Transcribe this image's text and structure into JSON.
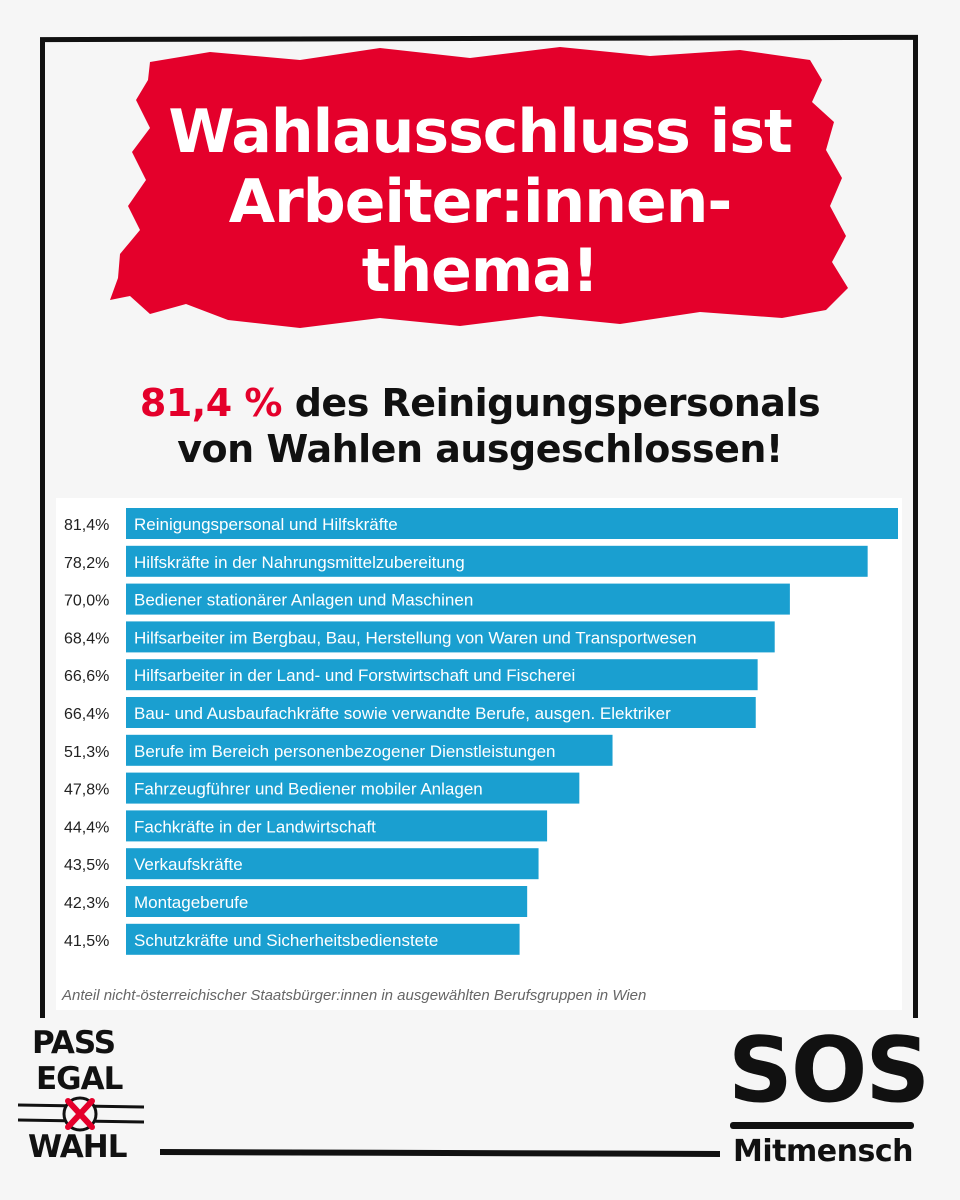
{
  "headline": {
    "lines": [
      "Wahlausschluss ist",
      "Arbeiter:innen-",
      "thema!"
    ]
  },
  "subhead": {
    "highlight": "81,4 %",
    "line1_rest": " des Reinigungspersonals",
    "line2": "von Wahlen ausgeschlossen!"
  },
  "colors": {
    "accent_red": "#e4002b",
    "bar_blue": "#1a9fd0",
    "frame": "#111111"
  },
  "chart_data": {
    "type": "bar",
    "orientation": "horizontal",
    "categories": [
      "Reinigungspersonal und Hilfskräfte",
      "Hilfskräfte in der Nahrungsmittelzubereitung",
      "Bediener stationärer Anlagen und Maschinen",
      "Hilfsarbeiter im Bergbau, Bau, Herstellung von Waren und Transportwesen",
      "Hilfsarbeiter in der Land- und Forstwirtschaft und Fischerei",
      "Bau- und Ausbaufachkräfte sowie verwandte Berufe, ausgen. Elektriker",
      "Berufe im Bereich personenbezogener Dienstleistungen",
      "Fahrzeugführer und Bediener mobiler Anlagen",
      "Fachkräfte in der Landwirtschaft",
      "Verkaufskräfte",
      "Montageberufe",
      "Schutzkräfte und Sicherheitsbedienstete"
    ],
    "values": [
      81.4,
      78.2,
      70.0,
      68.4,
      66.6,
      66.4,
      51.3,
      47.8,
      44.4,
      43.5,
      42.3,
      41.5
    ],
    "value_labels": [
      "81,4%",
      "78,2%",
      "70,0%",
      "68,4%",
      "66,6%",
      "66,4%",
      "51,3%",
      "47,8%",
      "44,4%",
      "43,5%",
      "42,3%",
      "41,5%"
    ],
    "xlim": [
      0,
      81.4
    ],
    "grid": false,
    "caption": "Anteil nicht-österreichischer Staatsbürger:innen in ausgewählten Berufsgruppen in Wien"
  },
  "logos": {
    "pass_egal_wahl": [
      "PASS",
      "EGAL",
      "WAHL"
    ],
    "sos": {
      "main": "SOS",
      "sub": "Mitmensch"
    }
  }
}
